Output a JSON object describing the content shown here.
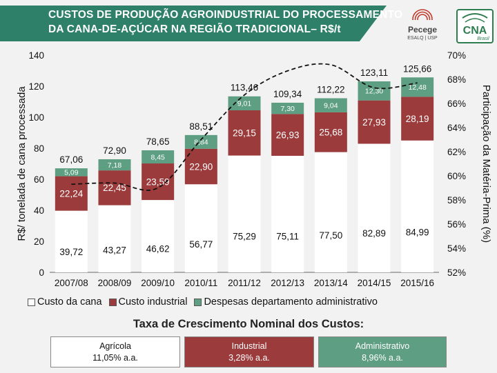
{
  "header": {
    "title_line1": "CUSTOS DE PRODUÇÃO AGROINDUSTRIAL DO PROCESSAMENTO",
    "title_line2": "DA CANA-DE-AÇÚCAR NA REGIÃO TRADICIONAL– R$/t",
    "logo_pecege_name": "Pecege",
    "logo_pecege_sub": "ESALQ | USP",
    "logo_cna": "CNA",
    "logo_cna_sub": "Brasil"
  },
  "colors": {
    "banner": "#2e8068",
    "cana": "#ffffff",
    "industrial": "#9b3b3b",
    "admin": "#5e9e82",
    "background": "#f2f2f2"
  },
  "chart_data": {
    "type": "bar",
    "stacked": true,
    "categories": [
      "2007/08",
      "2008/09",
      "2009/10",
      "2010/11",
      "2011/12",
      "2012/13",
      "2013/14",
      "2014/15",
      "2015/16"
    ],
    "series": [
      {
        "name": "Custo da cana",
        "values": [
          39.72,
          43.27,
          46.62,
          56.77,
          75.29,
          75.11,
          77.5,
          82.89,
          84.99
        ],
        "labels": [
          "39,72",
          "43,27",
          "46,62",
          "56,77",
          "75,29",
          "75,11",
          "77,50",
          "82,89",
          "84,99"
        ]
      },
      {
        "name": "Custo industrial",
        "values": [
          22.24,
          22.45,
          23.59,
          22.9,
          29.15,
          26.93,
          25.68,
          27.93,
          28.19
        ],
        "labels": [
          "22,24",
          "22,45",
          "23,59",
          "22,90",
          "29,15",
          "26,93",
          "25,68",
          "27,93",
          "28,19"
        ]
      },
      {
        "name": "Despesas departamento administrativo",
        "values": [
          5.09,
          7.18,
          8.45,
          8.84,
          9.01,
          7.3,
          9.04,
          12.3,
          12.48
        ],
        "labels": [
          "5,09",
          "7,18",
          "8,45",
          "8,84",
          "9,01",
          "7,30",
          "9,04",
          "12,30",
          "12,48"
        ]
      }
    ],
    "totals": [
      67.06,
      72.9,
      78.65,
      88.51,
      113.46,
      109.34,
      112.22,
      123.11,
      125.66
    ],
    "total_labels": [
      "67,06",
      "72,90",
      "78,65",
      "88,51",
      "113,46",
      "109,34",
      "112,22",
      "123,11",
      "125,66"
    ],
    "line": {
      "values": [
        59.3,
        59.4,
        59.0,
        63.0,
        66.7,
        68.7,
        69.2,
        67.3,
        67.7
      ],
      "style": "dashed",
      "axis": "right"
    },
    "ylabel_left": "R$/ tonelada de cana processada",
    "ylabel_right": "Participação da Matéria-Prima (%)",
    "ylim_left": [
      0,
      140
    ],
    "ylim_right": [
      52,
      70
    ],
    "yticks_left": [
      0,
      20,
      40,
      60,
      80,
      100,
      120,
      140
    ],
    "yticks_right": [
      "52%",
      "54%",
      "56%",
      "58%",
      "60%",
      "62%",
      "64%",
      "66%",
      "68%",
      "70%"
    ],
    "legend_position": "bottom",
    "grid": false
  },
  "legend": {
    "cana": "Custo da cana",
    "industrial": "Custo industrial",
    "admin": "Despesas departamento administrativo"
  },
  "growth": {
    "title": "Taxa de Crescimento Nominal dos Custos:",
    "items": [
      {
        "name": "Agrícola",
        "value": "11,05% a.a."
      },
      {
        "name": "Industrial",
        "value": "3,28% a.a."
      },
      {
        "name": "Administrativo",
        "value": "8,96% a.a."
      }
    ]
  }
}
